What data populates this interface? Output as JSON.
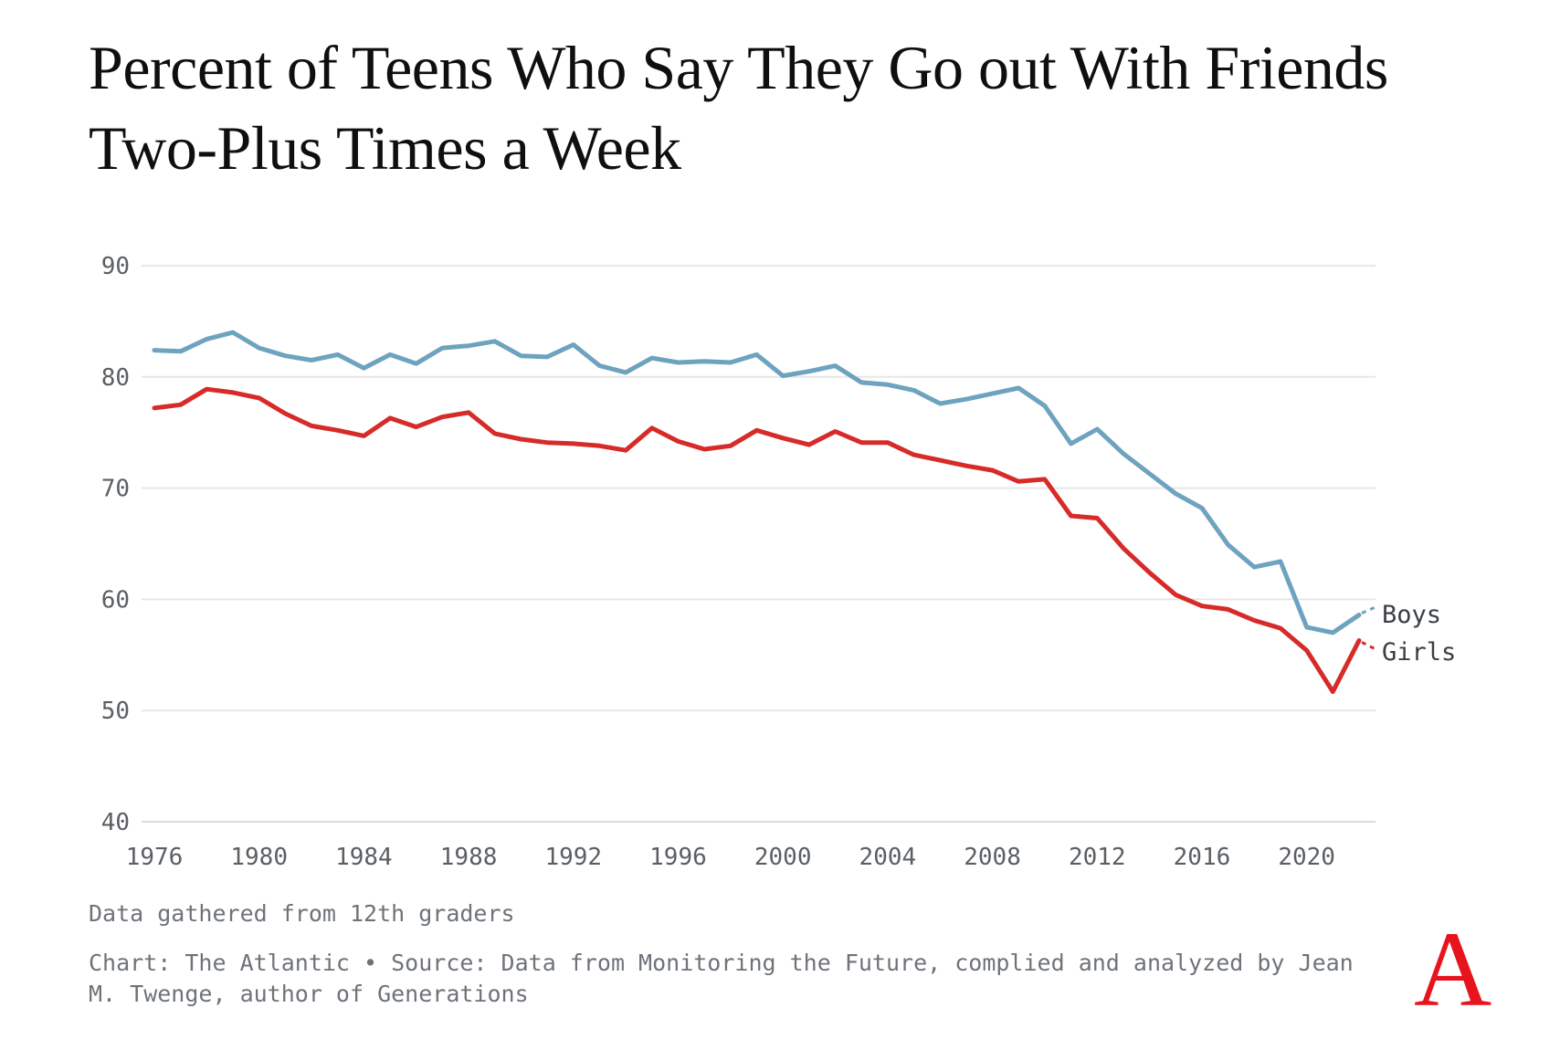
{
  "title": "Percent of Teens Who Say They Go out With Friends Two-Plus Times a Week",
  "footnote": "Data gathered from 12th graders",
  "credit": "Chart: The Atlantic • Source: Data from Monitoring the Future, complied and analyzed by Jean M. Twenge, author of Generations",
  "logo_letter": "A",
  "labels": {
    "boys": "Boys",
    "girls": "Girls"
  },
  "colors": {
    "boys_line": "#6ea3bf",
    "girls_line": "#d62b28",
    "gridline": "#e7e7e7",
    "baseline": "#dcdcdc",
    "axis_text": "#5b5f63",
    "label_text": "#3a3f44",
    "logo_red": "#e7141e"
  },
  "chart_data": {
    "type": "line",
    "title": "Percent of Teens Who Say They Go out With Friends Two-Plus Times a Week",
    "xlabel": "",
    "ylabel": "",
    "ylim": [
      40,
      90
    ],
    "yticks": [
      40,
      50,
      60,
      70,
      80,
      90
    ],
    "xticks": [
      1976,
      1980,
      1984,
      1988,
      1992,
      1996,
      2000,
      2004,
      2008,
      2012,
      2016,
      2020
    ],
    "grid": "horizontal",
    "legend": "end-of-line labels",
    "x": [
      1976,
      1977,
      1978,
      1979,
      1980,
      1981,
      1982,
      1983,
      1984,
      1985,
      1986,
      1987,
      1988,
      1989,
      1990,
      1991,
      1992,
      1993,
      1994,
      1995,
      1996,
      1997,
      1998,
      1999,
      2000,
      2001,
      2002,
      2003,
      2004,
      2005,
      2006,
      2007,
      2008,
      2009,
      2010,
      2011,
      2012,
      2013,
      2014,
      2015,
      2016,
      2017,
      2018,
      2019,
      2020,
      2021,
      2022
    ],
    "series": [
      {
        "name": "Boys",
        "color": "#6ea3bf",
        "values": [
          82.4,
          82.3,
          83.4,
          84.0,
          82.6,
          81.9,
          81.5,
          82.0,
          80.8,
          82.0,
          81.2,
          82.6,
          82.8,
          83.2,
          81.9,
          81.8,
          82.9,
          81.0,
          80.4,
          81.7,
          81.3,
          81.4,
          81.3,
          82.0,
          80.1,
          80.5,
          81.0,
          79.5,
          79.3,
          78.8,
          77.6,
          78.0,
          78.5,
          79.0,
          77.4,
          74.0,
          75.3,
          73.1,
          71.3,
          69.5,
          68.2,
          64.9,
          62.9,
          63.4,
          57.5,
          57.0,
          58.6
        ]
      },
      {
        "name": "Girls",
        "color": "#d62b28",
        "values": [
          77.2,
          77.5,
          78.9,
          78.6,
          78.1,
          76.7,
          75.6,
          75.2,
          74.7,
          76.3,
          75.5,
          76.4,
          76.8,
          74.9,
          74.4,
          74.1,
          74.0,
          73.8,
          73.4,
          75.4,
          74.2,
          73.5,
          73.8,
          75.2,
          74.5,
          73.9,
          75.1,
          74.1,
          74.1,
          73.0,
          72.5,
          72.0,
          71.6,
          70.6,
          70.8,
          67.5,
          67.3,
          64.6,
          62.4,
          60.4,
          59.4,
          59.1,
          58.1,
          57.4,
          55.4,
          51.7,
          56.3
        ]
      }
    ]
  }
}
